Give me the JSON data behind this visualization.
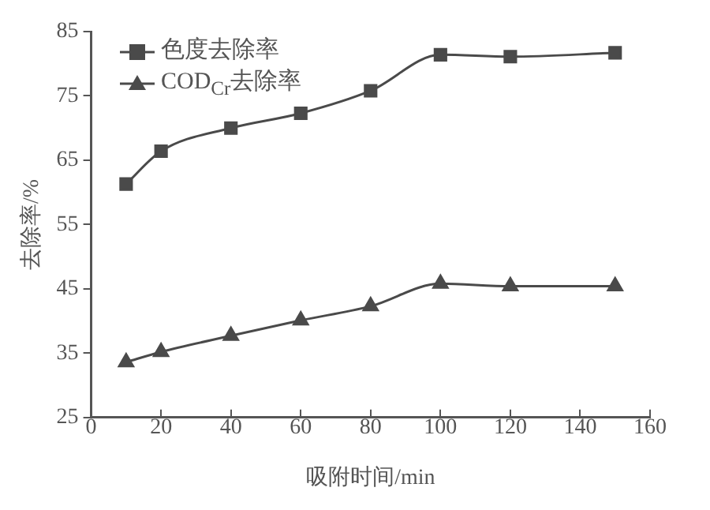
{
  "chart_data": {
    "type": "line",
    "xlabel": "吸附时间/min",
    "ylabel": "去除率/%",
    "x": [
      10,
      20,
      40,
      60,
      80,
      100,
      120,
      150
    ],
    "series": [
      {
        "name": "色度去除率",
        "color": "#4a4a4a",
        "marker": "square",
        "values": [
          61.3,
          66.4,
          70,
          72.3,
          75.8,
          81.4,
          81.1,
          81.7
        ]
      },
      {
        "name": "COD$_{Cr}$去除率",
        "color": "#4a4a4a",
        "marker": "triangle",
        "values": [
          33.6,
          35.2,
          37.7,
          40.1,
          42.3,
          45.8,
          45.4,
          45.4
        ]
      }
    ],
    "xlim": [
      0,
      160
    ],
    "xticks": [
      0,
      20,
      40,
      60,
      80,
      100,
      120,
      140,
      160
    ],
    "ylim": [
      25,
      85
    ],
    "yticks": [
      25,
      35,
      45,
      55,
      65,
      75,
      85
    ],
    "grid": false,
    "legend": "top left"
  }
}
